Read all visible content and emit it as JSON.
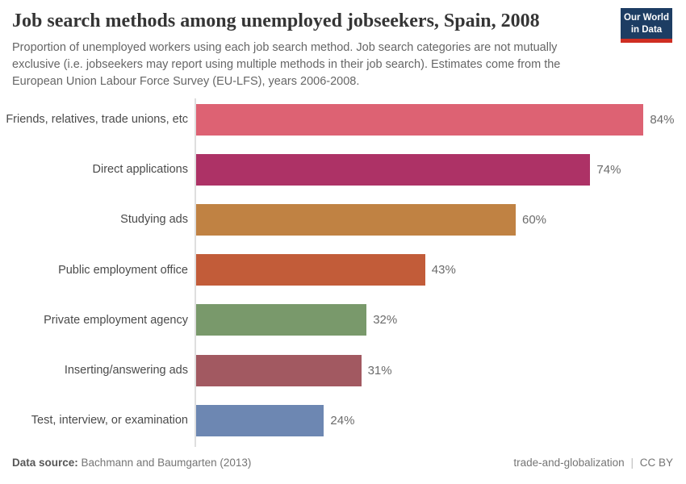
{
  "header": {
    "title": "Job search methods among unemployed jobseekers, Spain, 2008",
    "subtitle": "Proportion of unemployed workers using each job search method. Job search categories are not mutually exclusive (i.e. jobseekers may report using multiple methods in their job search). Estimates come from the European Union Labour Force Survey (EU-LFS), years 2006-2008."
  },
  "logo": {
    "line1": "Our World",
    "line2": "in Data",
    "bg_color": "#1d3d63",
    "accent_color": "#cf2e22"
  },
  "chart_data": {
    "type": "bar",
    "orientation": "horizontal",
    "title": "Job search methods among unemployed jobseekers, Spain, 2008",
    "categories": [
      "Friends, relatives, trade unions, etc",
      "Direct applications",
      "Studying ads",
      "Public employment office",
      "Private employment agency",
      "Inserting/answering ads",
      "Test, interview, or examination"
    ],
    "values": [
      84,
      74,
      60,
      43,
      32,
      31,
      24
    ],
    "value_labels": [
      "84%",
      "74%",
      "60%",
      "43%",
      "32%",
      "31%",
      "24%"
    ],
    "unit": "%",
    "bar_colors": [
      "#dd6273",
      "#ad3266",
      "#c08243",
      "#c25c39",
      "#79996b",
      "#a25961",
      "#6d87b2"
    ],
    "axis_color": "#dedede",
    "xlim": [
      0,
      100
    ],
    "grid": false,
    "legend": false
  },
  "footer": {
    "source_label": "Data source:",
    "source_value": "Bachmann and Baumgarten (2013)",
    "slug": "trade-and-globalization",
    "separator": "|",
    "license": "CC BY"
  }
}
